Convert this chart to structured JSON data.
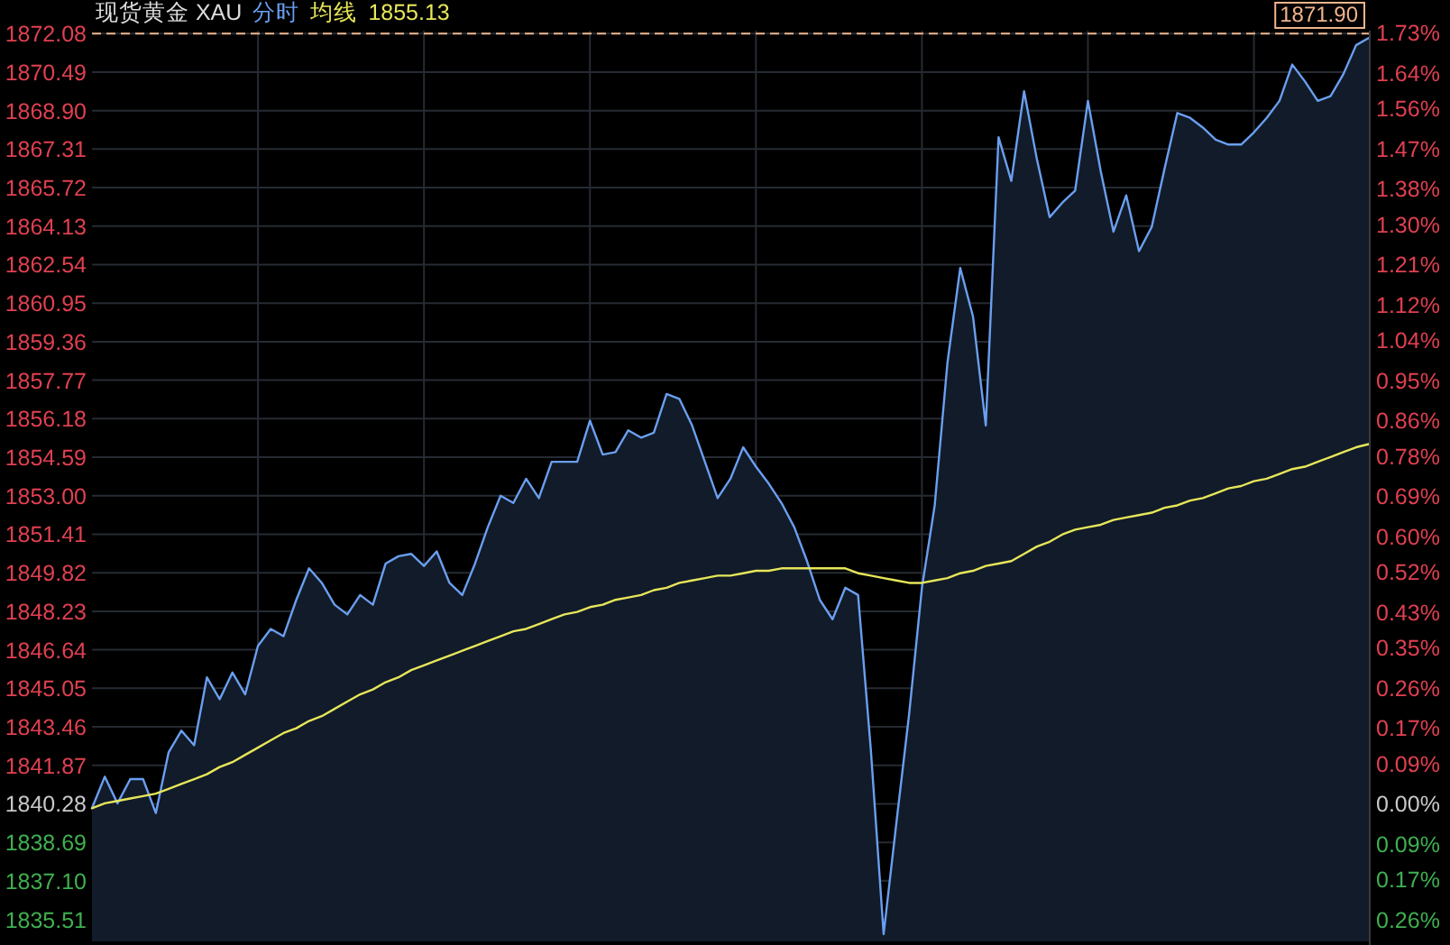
{
  "chart_data": {
    "type": "line",
    "title": "现货黄金 XAU",
    "categories": [
      null,
      null,
      null,
      null,
      null,
      null,
      null,
      null,
      null,
      null,
      null,
      null,
      null,
      null,
      null,
      null,
      null,
      null,
      null,
      null,
      null,
      null,
      null,
      null,
      null,
      null,
      null,
      null,
      null,
      null,
      null,
      null,
      null,
      null,
      null,
      null,
      null,
      null,
      null,
      null,
      null,
      null,
      null,
      null,
      null,
      null,
      null,
      null,
      null,
      null,
      null,
      null,
      null,
      null,
      null,
      null,
      null,
      null,
      null,
      null,
      null,
      null,
      null,
      null,
      null,
      null,
      null,
      null,
      null,
      null,
      null,
      null,
      null,
      null,
      null,
      null,
      null,
      null,
      null,
      null,
      null,
      null,
      null,
      null,
      null,
      null,
      null,
      null,
      null,
      null,
      null,
      null,
      null,
      null,
      null,
      null,
      null,
      null,
      null,
      null,
      null
    ],
    "series": [
      {
        "name": "分时",
        "type": "area",
        "color": "#6a9ff0",
        "values": [
          1840.1,
          1841.4,
          1840.3,
          1841.3,
          1841.3,
          1839.9,
          1842.4,
          1843.3,
          1842.7,
          1845.5,
          1844.6,
          1845.7,
          1844.8,
          1846.8,
          1847.5,
          1847.2,
          1848.7,
          1850.0,
          1849.4,
          1848.5,
          1848.1,
          1848.9,
          1848.5,
          1850.2,
          1850.5,
          1850.6,
          1850.1,
          1850.7,
          1849.4,
          1848.9,
          1850.2,
          1851.7,
          1853.0,
          1852.7,
          1853.7,
          1852.9,
          1854.4,
          1854.4,
          1854.4,
          1856.1,
          1854.7,
          1854.8,
          1855.7,
          1855.4,
          1855.6,
          1857.2,
          1857.0,
          1855.9,
          1854.4,
          1852.9,
          1853.7,
          1855.0,
          1854.2,
          1853.5,
          1852.7,
          1851.7,
          1850.3,
          1848.7,
          1847.9,
          1849.2,
          1848.9,
          1842.5,
          1834.9,
          1839.5,
          1844.0,
          1849.2,
          1852.6,
          1858.5,
          1862.4,
          1860.4,
          1855.9,
          1867.8,
          1866.0,
          1869.7,
          1866.9,
          1864.5,
          1865.1,
          1865.6,
          1869.3,
          1866.4,
          1863.9,
          1865.4,
          1863.1,
          1864.1,
          1866.5,
          1868.8,
          1868.6,
          1868.2,
          1867.7,
          1867.5,
          1867.5,
          1868.0,
          1868.6,
          1869.3,
          1870.8,
          1870.1,
          1869.3,
          1869.5,
          1870.4,
          1871.6,
          1871.9
        ]
      },
      {
        "name": "均线",
        "type": "line",
        "color": "#e6e65a",
        "values": [
          1840.1,
          1840.3,
          1840.4,
          1840.5,
          1840.6,
          1840.7,
          1840.9,
          1841.1,
          1841.3,
          1841.5,
          1841.8,
          1842.0,
          1842.3,
          1842.6,
          1842.9,
          1843.2,
          1843.4,
          1843.7,
          1843.9,
          1844.2,
          1844.5,
          1844.8,
          1845.0,
          1845.3,
          1845.5,
          1845.8,
          1846.0,
          1846.2,
          1846.4,
          1846.6,
          1846.8,
          1847.0,
          1847.2,
          1847.4,
          1847.5,
          1847.7,
          1847.9,
          1848.1,
          1848.2,
          1848.4,
          1848.5,
          1848.7,
          1848.8,
          1848.9,
          1849.1,
          1849.2,
          1849.4,
          1849.5,
          1849.6,
          1849.7,
          1849.7,
          1849.8,
          1849.9,
          1849.9,
          1850.0,
          1850.0,
          1850.0,
          1850.0,
          1850.0,
          1850.0,
          1849.8,
          1849.7,
          1849.6,
          1849.5,
          1849.4,
          1849.4,
          1849.5,
          1849.6,
          1849.8,
          1849.9,
          1850.1,
          1850.2,
          1850.3,
          1850.6,
          1850.9,
          1851.1,
          1851.4,
          1851.6,
          1851.7,
          1851.8,
          1852.0,
          1852.1,
          1852.2,
          1852.3,
          1852.5,
          1852.6,
          1852.8,
          1852.9,
          1853.1,
          1853.3,
          1853.4,
          1853.6,
          1853.7,
          1853.9,
          1854.1,
          1854.2,
          1854.4,
          1854.6,
          1854.8,
          1855.0,
          1855.13
        ]
      }
    ],
    "ylim": [
      1834.6,
      1872.2
    ],
    "yticks": [
      {
        "value": 1835.51,
        "label": "1835.51"
      },
      {
        "value": 1837.1,
        "label": "1837.10"
      },
      {
        "value": 1838.69,
        "label": "1838.69"
      },
      {
        "value": 1840.28,
        "label": "1840.28"
      },
      {
        "value": 1841.87,
        "label": "1841.87"
      },
      {
        "value": 1843.46,
        "label": "1843.46"
      },
      {
        "value": 1845.05,
        "label": "1845.05"
      },
      {
        "value": 1846.64,
        "label": "1846.64"
      },
      {
        "value": 1848.23,
        "label": "1848.23"
      },
      {
        "value": 1849.82,
        "label": "1849.82"
      },
      {
        "value": 1851.41,
        "label": "1851.41"
      },
      {
        "value": 1853,
        "label": "1853.00"
      },
      {
        "value": 1854.59,
        "label": "1854.59"
      },
      {
        "value": 1856.18,
        "label": "1856.18"
      },
      {
        "value": 1857.77,
        "label": "1857.77"
      },
      {
        "value": 1859.36,
        "label": "1859.36"
      },
      {
        "value": 1860.95,
        "label": "1860.95"
      },
      {
        "value": 1862.54,
        "label": "1862.54"
      },
      {
        "value": 1864.13,
        "label": "1864.13"
      },
      {
        "value": 1865.72,
        "label": "1865.72"
      },
      {
        "value": 1867.31,
        "label": "1867.31"
      },
      {
        "value": 1868.9,
        "label": "1868.90"
      },
      {
        "value": 1870.49,
        "label": "1870.49"
      },
      {
        "value": 1872.08,
        "label": "1872.08"
      }
    ],
    "y2lim": [
      -0.309,
      1.735
    ],
    "y2ticks": [
      {
        "value": -0.26,
        "label": "0.26%"
      },
      {
        "value": -0.17,
        "label": "0.17%"
      },
      {
        "value": -0.09,
        "label": "0.09%"
      },
      {
        "value": 0,
        "label": "0.00%"
      },
      {
        "value": 0.09,
        "label": "0.09%"
      },
      {
        "value": 0.17,
        "label": "0.17%"
      },
      {
        "value": 0.26,
        "label": "0.26%"
      },
      {
        "value": 0.35,
        "label": "0.35%"
      },
      {
        "value": 0.43,
        "label": "0.43%"
      },
      {
        "value": 0.52,
        "label": "0.52%"
      },
      {
        "value": 0.6,
        "label": "0.60%"
      },
      {
        "value": 0.69,
        "label": "0.69%"
      },
      {
        "value": 0.78,
        "label": "0.78%"
      },
      {
        "value": 0.86,
        "label": "0.86%"
      },
      {
        "value": 0.95,
        "label": "0.95%"
      },
      {
        "value": 1.04,
        "label": "1.04%"
      },
      {
        "value": 1.12,
        "label": "1.12%"
      },
      {
        "value": 1.21,
        "label": "1.21%"
      },
      {
        "value": 1.3,
        "label": "1.30%"
      },
      {
        "value": 1.38,
        "label": "1.38%"
      },
      {
        "value": 1.47,
        "label": "1.47%"
      },
      {
        "value": 1.56,
        "label": "1.56%"
      },
      {
        "value": 1.64,
        "label": "1.64%"
      },
      {
        "value": 1.73,
        "label": "1.73%"
      }
    ],
    "ref_lines": [
      {
        "axis": "y",
        "value": 1872.08,
        "color": "#f0b48c",
        "line_style": "dashed"
      }
    ],
    "annotations": [
      "1855.13",
      "1871.90"
    ],
    "grid": true,
    "legend": "top left"
  }
}
